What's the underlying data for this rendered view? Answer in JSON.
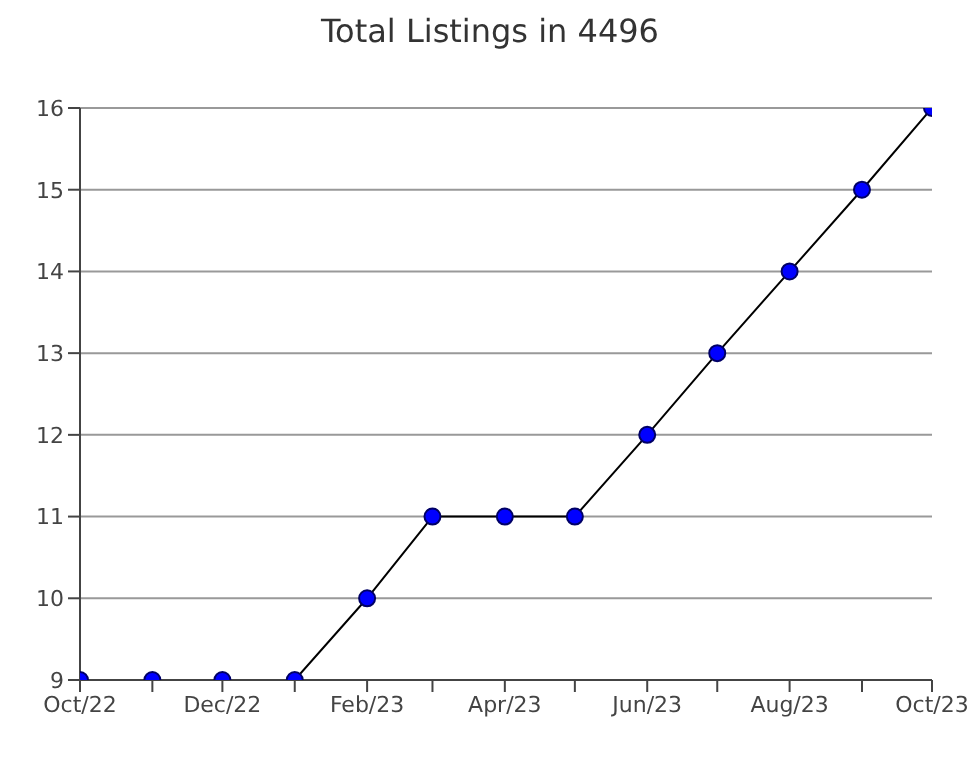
{
  "chart_data": {
    "type": "line",
    "title": "Total Listings in 4496",
    "x": [
      "2022-10",
      "2022-11",
      "2022-12",
      "2023-01",
      "2023-02",
      "2023-03",
      "2023-04",
      "2023-05",
      "2023-06",
      "2023-07",
      "2023-08",
      "2023-09",
      "2023-10"
    ],
    "series": [
      {
        "color": "#0000ff",
        "values": [
          9,
          9,
          9,
          9,
          10,
          11,
          11,
          11,
          12,
          13,
          14,
          15,
          16
        ]
      }
    ],
    "xlim": [
      "2022-10",
      "2023-10"
    ],
    "xticks": [
      {
        "value": "2022-10",
        "label": "Oct/22"
      },
      {
        "value": "2022-11",
        "label": null
      },
      {
        "value": "2022-12",
        "label": "Dec/22"
      },
      {
        "value": "2023-01",
        "label": null
      },
      {
        "value": "2023-02",
        "label": "Feb/23"
      },
      {
        "value": "2023-03",
        "label": null
      },
      {
        "value": "2023-04",
        "label": "Apr/23"
      },
      {
        "value": "2023-05",
        "label": null
      },
      {
        "value": "2023-06",
        "label": "Jun/23"
      },
      {
        "value": "2023-07",
        "label": null
      },
      {
        "value": "2023-08",
        "label": "Aug/23"
      },
      {
        "value": "2023-09",
        "label": null
      },
      {
        "value": "2023-10",
        "label": "Oct/23"
      }
    ],
    "ylim": [
      9,
      16
    ],
    "yticks": [
      9,
      10,
      11,
      12,
      13,
      14,
      15,
      16
    ],
    "grid": "y",
    "marker": "circle",
    "line_style": "solid",
    "legend": false
  }
}
